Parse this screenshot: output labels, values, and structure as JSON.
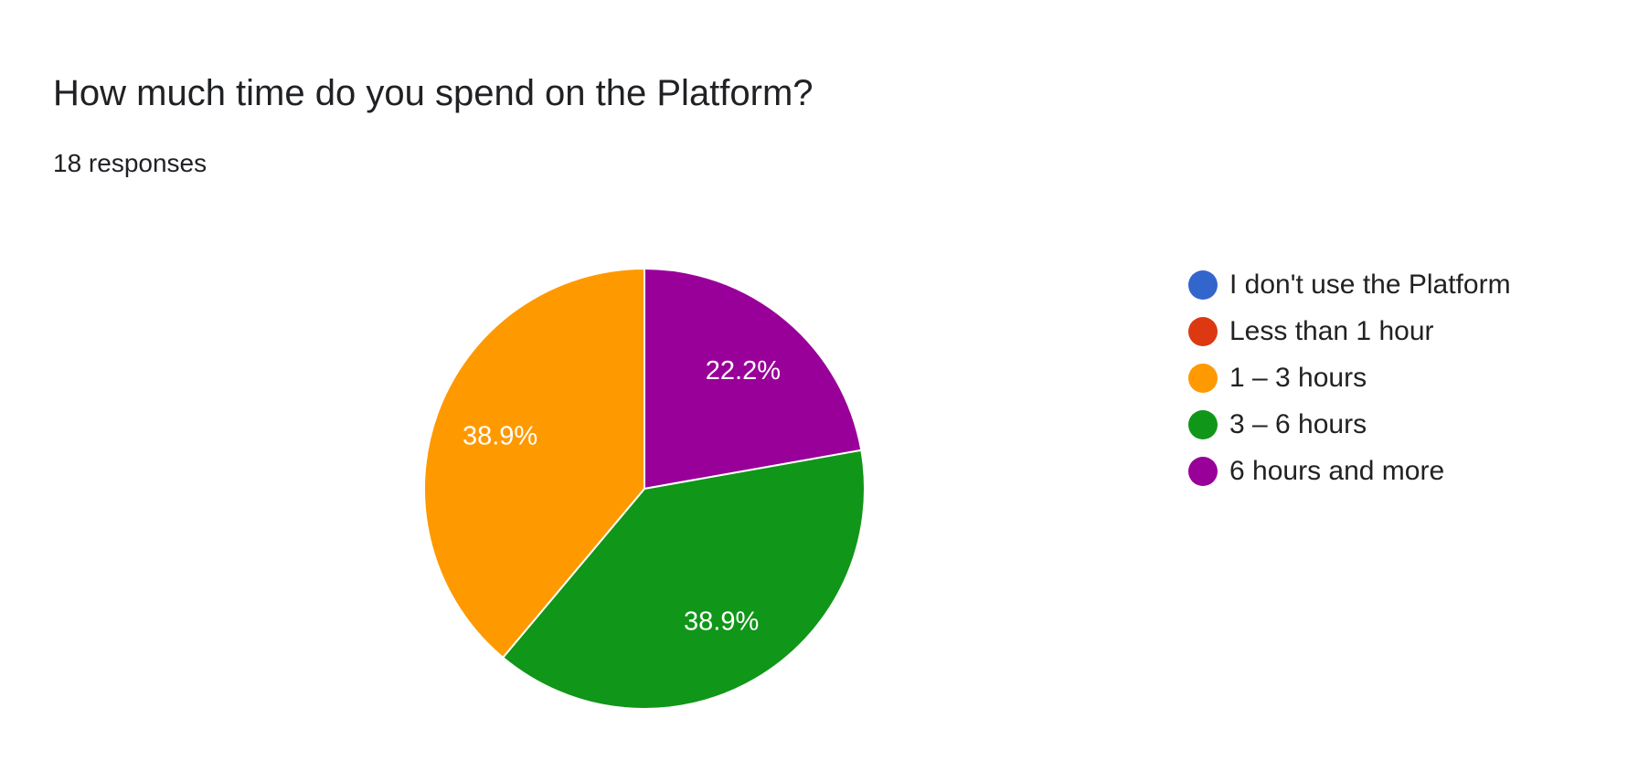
{
  "header": {
    "title": "How much time do you spend on the Platform?",
    "responses": "18 responses"
  },
  "chart_data": {
    "type": "pie",
    "title": "How much time do you spend on the Platform?",
    "categories": [
      "I don't use the Platform",
      "Less than 1 hour",
      "1 – 3 hours",
      "3 – 6 hours",
      "6 hours and more"
    ],
    "values": [
      0,
      0,
      38.9,
      38.9,
      22.2
    ],
    "slice_labels": [
      "",
      "",
      "38.9%",
      "38.9%",
      "22.2%"
    ],
    "colors": [
      "#3366cc",
      "#dc3912",
      "#ff9900",
      "#109618",
      "#990099"
    ],
    "legend_position": "right",
    "start_slice": "6 hours and more",
    "direction": "clockwise from 12 o'clock"
  }
}
